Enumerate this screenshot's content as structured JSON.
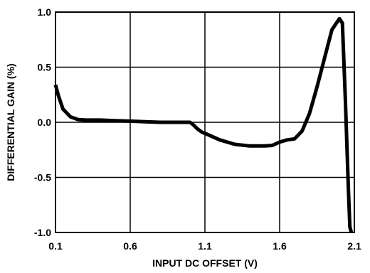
{
  "chart_data": {
    "type": "line",
    "xlabel": "INPUT DC OFFSET (V)",
    "ylabel": "DIFFERENTIAL GAIN (%)",
    "xlim": [
      0.1,
      2.1
    ],
    "ylim": [
      -1.0,
      1.0
    ],
    "x_ticks": [
      "0.1",
      "0.6",
      "1.1",
      "1.6",
      "2.1"
    ],
    "y_ticks": [
      "1.0",
      "0.5",
      "0.0",
      "-0.5",
      "-1.0"
    ],
    "grid": true,
    "series": [
      {
        "x": [
          0.1,
          0.12,
          0.15,
          0.2,
          0.25,
          0.3,
          0.4,
          0.5,
          0.6,
          0.7,
          0.8,
          0.9,
          0.95,
          1.0,
          1.02,
          1.05,
          1.08,
          1.1,
          1.15,
          1.2,
          1.3,
          1.4,
          1.5,
          1.55,
          1.6,
          1.65,
          1.7,
          1.75,
          1.8,
          1.85,
          1.9,
          1.95,
          2.0,
          2.02,
          2.04,
          2.05,
          2.06,
          2.07,
          2.08
        ],
        "y": [
          0.34,
          0.24,
          0.12,
          0.05,
          0.025,
          0.02,
          0.02,
          0.015,
          0.01,
          0.005,
          0.0,
          0.0,
          0.0,
          0.0,
          -0.02,
          -0.06,
          -0.09,
          -0.1,
          -0.13,
          -0.16,
          -0.2,
          -0.215,
          -0.215,
          -0.21,
          -0.18,
          -0.16,
          -0.15,
          -0.08,
          0.08,
          0.32,
          0.58,
          0.84,
          0.94,
          0.9,
          0.2,
          -0.2,
          -0.6,
          -0.95,
          -1.0
        ]
      }
    ]
  }
}
